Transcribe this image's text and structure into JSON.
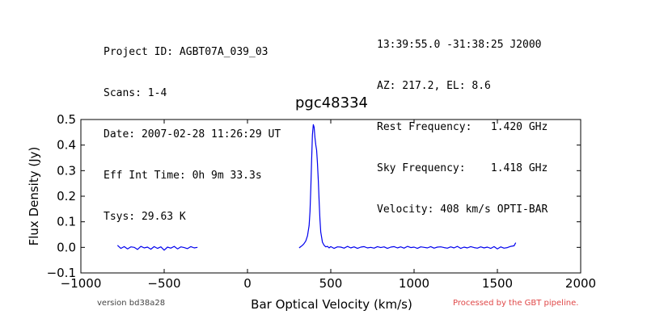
{
  "header": {
    "left_lines": [
      "Project ID: AGBT07A_039_03",
      "Scans: 1-4",
      "Date: 2007-02-28 11:26:29 UT",
      "Eff Int Time: 0h 9m 33.3s",
      "Tsys: 29.63 K"
    ],
    "right_lines": [
      "13:39:55.0 -31:38:25 J2000",
      "AZ: 217.2, EL: 8.6",
      "Rest Frequency:   1.420 GHz",
      "Sky Frequency:    1.418 GHz",
      "Velocity: 408 km/s OPTI-BAR"
    ]
  },
  "footer": {
    "version": "version bd38a28",
    "pipeline": "Processed by the GBT pipeline."
  },
  "colors": {
    "series": "#0000ee",
    "pipeline_text": "#e04848"
  },
  "chart_data": {
    "type": "line",
    "title": "pgc48334",
    "xlabel": "Bar Optical Velocity (km/s)",
    "ylabel": "Flux Density (Jy)",
    "xlim": [
      -1000,
      2000
    ],
    "ylim": [
      -0.1,
      0.5
    ],
    "xticks": [
      -1000,
      -500,
      0,
      500,
      1000,
      1500,
      2000
    ],
    "xtick_labels": [
      "−1000",
      "−500",
      "0",
      "500",
      "1000",
      "1500",
      "2000"
    ],
    "yticks": [
      -0.1,
      0.0,
      0.1,
      0.2,
      0.3,
      0.4,
      0.5
    ],
    "ytick_labels": [
      "−0.1",
      "0.0",
      "0.1",
      "0.2",
      "0.3",
      "0.4",
      "0.5"
    ],
    "grid": false,
    "legend": "none",
    "series": [
      {
        "segment": "baseline-low",
        "x": [
          -780,
          -760,
          -740,
          -720,
          -700,
          -680,
          -660,
          -640,
          -620,
          -600,
          -580,
          -560,
          -540,
          -520,
          -500,
          -480,
          -460,
          -440,
          -420,
          -400,
          -380,
          -360,
          -340,
          -320,
          -300
        ],
        "y": [
          0.008,
          -0.004,
          0.003,
          -0.006,
          0.002,
          0.0,
          -0.008,
          0.004,
          -0.002,
          0.001,
          -0.007,
          0.003,
          -0.004,
          0.002,
          -0.011,
          0.001,
          -0.003,
          0.004,
          -0.006,
          0.002,
          -0.001,
          -0.005,
          0.003,
          -0.002,
          0.0
        ]
      },
      {
        "segment": "spectrum-main",
        "x": [
          310,
          320,
          330,
          340,
          350,
          360,
          370,
          375,
          380,
          385,
          390,
          395,
          400,
          405,
          410,
          415,
          420,
          425,
          430,
          435,
          440,
          450,
          460,
          470,
          480,
          490,
          500,
          520,
          540,
          560,
          580,
          600,
          620,
          640,
          660,
          680,
          700,
          720,
          740,
          760,
          780,
          800,
          820,
          840,
          860,
          880,
          900,
          920,
          940,
          960,
          980,
          1000,
          1020,
          1040,
          1060,
          1080,
          1100,
          1120,
          1140,
          1160,
          1180,
          1200,
          1220,
          1240,
          1260,
          1280,
          1300,
          1320,
          1340,
          1360,
          1380,
          1400,
          1420,
          1440,
          1460,
          1480,
          1500,
          1520,
          1540,
          1560,
          1580,
          1600,
          1610
        ],
        "y": [
          -0.002,
          0.003,
          0.008,
          0.015,
          0.025,
          0.045,
          0.085,
          0.14,
          0.23,
          0.34,
          0.44,
          0.48,
          0.47,
          0.43,
          0.4,
          0.38,
          0.33,
          0.26,
          0.18,
          0.11,
          0.06,
          0.02,
          0.008,
          0.002,
          0.004,
          -0.002,
          0.003,
          -0.004,
          0.002,
          0.001,
          -0.003,
          0.004,
          -0.002,
          0.002,
          -0.004,
          0.001,
          0.003,
          -0.002,
          0.0,
          -0.003,
          0.003,
          -0.001,
          0.002,
          -0.004,
          0.001,
          0.003,
          -0.002,
          0.002,
          -0.003,
          0.004,
          -0.001,
          0.001,
          -0.004,
          0.002,
          0.0,
          -0.002,
          0.003,
          -0.003,
          0.001,
          0.002,
          -0.001,
          -0.003,
          0.002,
          -0.002,
          0.004,
          -0.004,
          0.001,
          -0.002,
          0.003,
          -0.001,
          -0.003,
          0.002,
          -0.002,
          0.001,
          -0.004,
          0.003,
          -0.006,
          0.002,
          -0.003,
          -0.001,
          0.004,
          0.006,
          0.018
        ]
      }
    ]
  }
}
